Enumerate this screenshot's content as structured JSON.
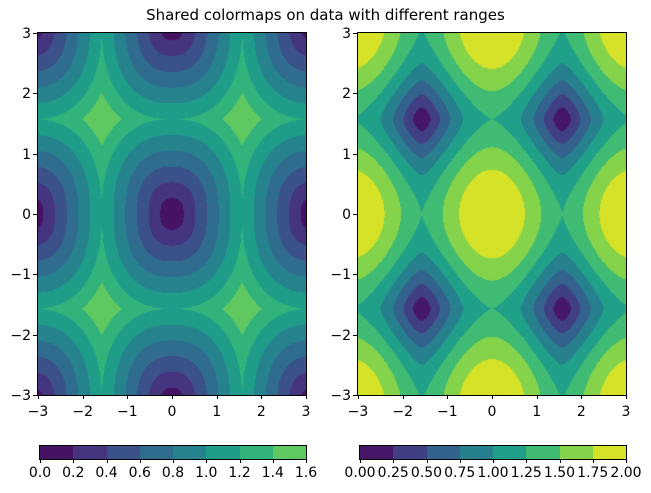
{
  "figure": {
    "title": "Shared colormaps on data with different ranges",
    "background": "#ffffff",
    "text_color": "#000000"
  },
  "colormap": {
    "name": "viridis",
    "anchors": [
      "#440154",
      "#482878",
      "#3e4989",
      "#31688e",
      "#26828e",
      "#1f9e89",
      "#35b779",
      "#6ece58",
      "#b5de2b",
      "#fde725"
    ],
    "shared_norm": {
      "vmin": 0,
      "vmax": 2
    }
  },
  "chart_data": [
    {
      "type": "contourf",
      "name": "left-subplot",
      "function": {
        "desc": "Z1: periodic field, minima 0 at (m*pi, n*pi), maxima 1.6 at ((m+1/2)*pi,(n+1/2)*pi); approx Z1 = 1.2*(tx^2.409 + ty^2.409)^(1/2.409), t = dist to nearest multiple of pi / (pi/2)",
        "kind": "tri_pnorm",
        "scale": 1.2,
        "p": 2.409
      },
      "x_range": [
        -3,
        3
      ],
      "y_range": [
        -3,
        3
      ],
      "data_range": [
        0,
        1.6
      ],
      "levels": [
        0,
        0.2,
        0.4,
        0.6,
        0.8,
        1.0,
        1.2,
        1.4,
        1.6
      ],
      "x_ticks": {
        "values": [
          -3,
          -2,
          -1,
          0,
          1,
          2,
          3
        ],
        "labels": [
          "−3",
          "−2",
          "−1",
          "0",
          "1",
          "2",
          "3"
        ]
      },
      "y_ticks": {
        "values": [
          -3,
          -2,
          -1,
          0,
          1,
          2,
          3
        ],
        "labels": [
          "−3",
          "−2",
          "−1",
          "0",
          "1",
          "2",
          "3"
        ]
      },
      "colorbar": {
        "orientation": "horizontal",
        "tick_labels": [
          "0.0",
          "0.2",
          "0.4",
          "0.6",
          "0.8",
          "1.0",
          "1.2",
          "1.4",
          "1.6"
        ]
      }
    },
    {
      "type": "contourf",
      "name": "right-subplot",
      "function": {
        "desc": "Z2: periodic field, maxima 2.0 at (m*pi, n*pi), minima 0 at ((m+1/2)*pi,(n+1/2)*pi); approx Z2 = 1.25*(|cos x|^1.474 + |cos y|^1.474)^(1/1.474)",
        "kind": "cos_pnorm",
        "scale": 1.25,
        "p": 1.474
      },
      "x_range": [
        -3,
        3
      ],
      "y_range": [
        -3,
        3
      ],
      "data_range": [
        0,
        2.0
      ],
      "levels": [
        0,
        0.25,
        0.5,
        0.75,
        1.0,
        1.25,
        1.5,
        1.75,
        2.0
      ],
      "x_ticks": {
        "values": [
          -3,
          -2,
          -1,
          0,
          1,
          2,
          3
        ],
        "labels": [
          "−3",
          "−2",
          "−1",
          "0",
          "1",
          "2",
          "3"
        ]
      },
      "y_ticks": {
        "values": [
          -3,
          -2,
          -1,
          0,
          1,
          2,
          3
        ],
        "labels": [
          "−3",
          "−2",
          "−1",
          "0",
          "1",
          "2",
          "3"
        ]
      },
      "colorbar": {
        "orientation": "horizontal",
        "tick_labels": [
          "0.00",
          "0.25",
          "0.50",
          "0.75",
          "1.00",
          "1.25",
          "1.50",
          "1.75",
          "2.00"
        ]
      }
    }
  ]
}
